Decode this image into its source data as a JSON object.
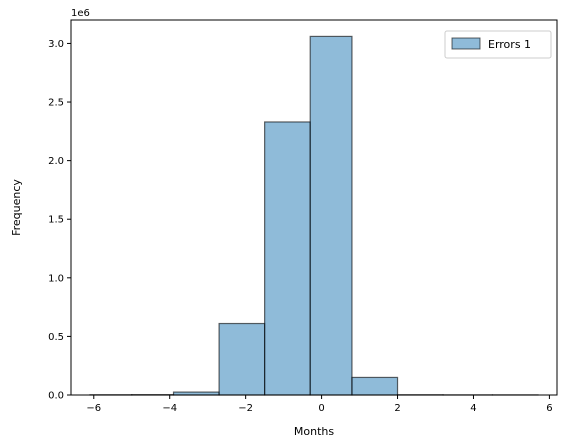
{
  "chart_data": {
    "type": "bar",
    "chart_kind": "histogram",
    "xlabel": "Months",
    "ylabel": "Frequency",
    "y_offset_text": "1e6",
    "xlim": [
      -6.6,
      6.2
    ],
    "ylim": [
      0,
      3.2
    ],
    "y_multiplier": 1000000,
    "x_ticks": [
      -6,
      -4,
      -2,
      0,
      2,
      4,
      6
    ],
    "y_ticks": [
      0.0,
      0.5,
      1.0,
      1.5,
      2.0,
      2.5,
      3.0
    ],
    "x_tick_labels": [
      "−6",
      "−4",
      "−2",
      "0",
      "2",
      "4",
      "6"
    ],
    "y_tick_labels": [
      "0.0",
      "0.5",
      "1.0",
      "1.5",
      "2.0",
      "2.5",
      "3.0"
    ],
    "grid": false,
    "legend_position": "top-right",
    "bar_color": "#1f77b4",
    "bar_alpha": 0.5,
    "edge_color": "#000000",
    "series": [
      {
        "name": "Errors 1",
        "bins": [
          -6.1,
          -5.0,
          -3.9,
          -2.7,
          -1.5,
          -0.3,
          0.8,
          2.0,
          3.2,
          4.5,
          5.7
        ],
        "values": [
          0.002,
          0.003,
          0.025,
          0.61,
          2.33,
          3.06,
          0.15,
          0.002,
          0.001,
          0.001
        ]
      }
    ]
  }
}
